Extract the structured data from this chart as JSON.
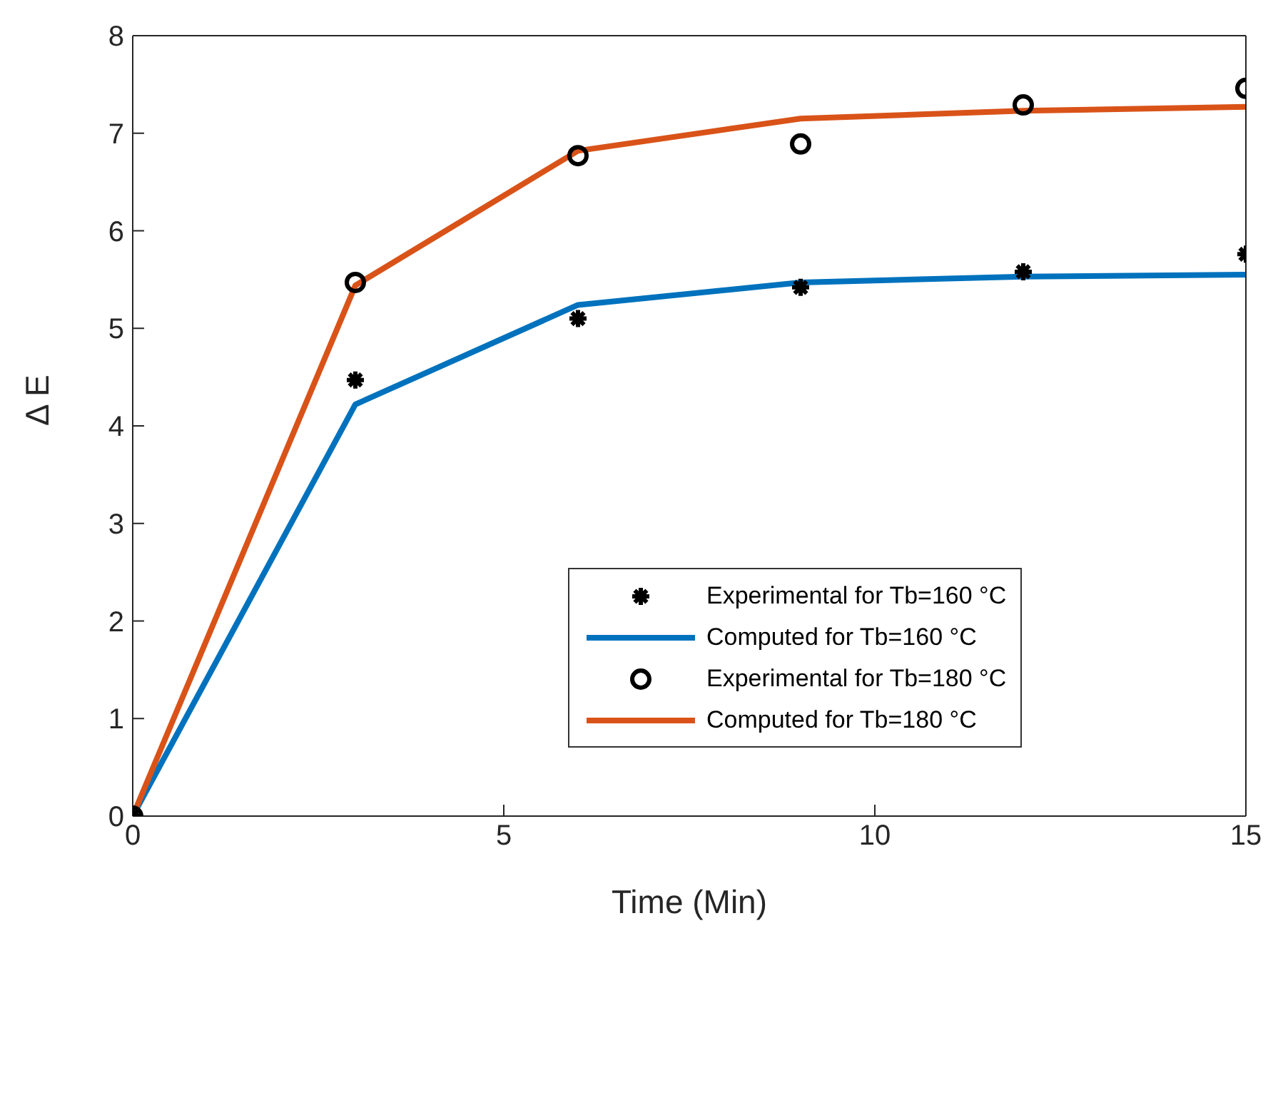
{
  "chart_data": {
    "type": "line",
    "xlabel": "Time (Min)",
    "ylabel": "Δ E",
    "x": [
      0,
      3,
      6,
      9,
      12,
      15
    ],
    "xlim": [
      0,
      15
    ],
    "xticks": [
      0,
      5,
      10,
      15
    ],
    "ylim": [
      0,
      8
    ],
    "yticks": [
      0,
      1,
      2,
      3,
      4,
      5,
      6,
      7,
      8
    ],
    "legend": "right",
    "series": [
      {
        "name": "Experimental for Tb=160 °C",
        "type": "scatter",
        "marker": "cross",
        "color": "#000000",
        "values": [
          0,
          4.47,
          5.1,
          5.42,
          5.58,
          5.76
        ]
      },
      {
        "name": "Computed for Tb=160 °C",
        "marker": "none",
        "line_style": "solid",
        "color": "#0072bd",
        "values": [
          0,
          4.22,
          5.24,
          5.47,
          5.53,
          5.55
        ]
      },
      {
        "name": "Experimental for Tb=180 °C",
        "type": "scatter",
        "marker": "circle",
        "color": "#000000",
        "values": [
          0,
          5.47,
          6.77,
          6.89,
          7.29,
          7.46
        ]
      },
      {
        "name": "Computed for Tb=180 °C",
        "marker": "none",
        "line_style": "solid",
        "color": "#d95319",
        "values": [
          0,
          5.44,
          6.82,
          7.15,
          7.23,
          7.27
        ]
      }
    ]
  }
}
